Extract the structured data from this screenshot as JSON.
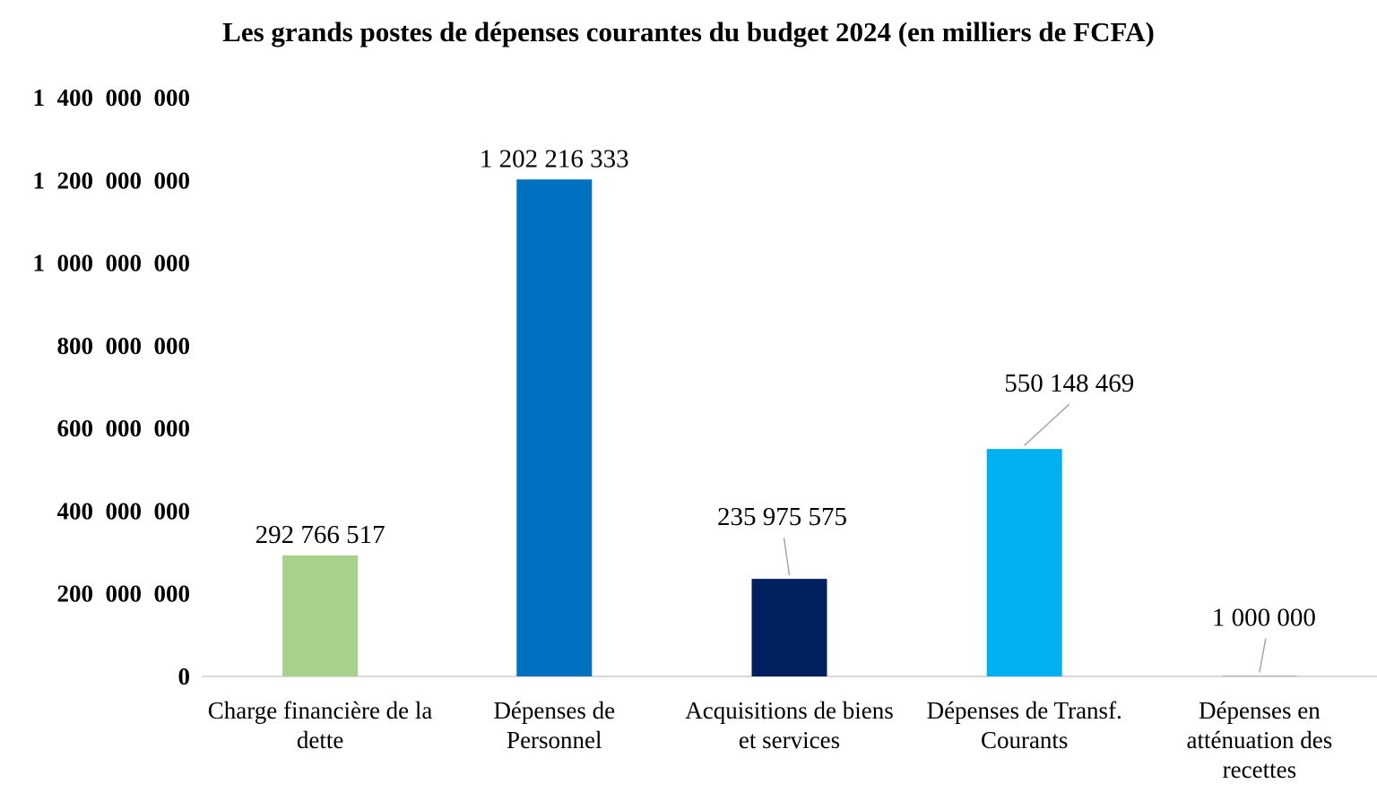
{
  "chart_data": {
    "type": "bar",
    "title": "Les grands postes de dépenses courantes du budget 2024 (en milliers de FCFA)",
    "xlabel": "",
    "ylabel": "",
    "ylim": [
      0,
      1400000000
    ],
    "y_ticks": [
      0,
      200000000,
      400000000,
      600000000,
      800000000,
      1000000000,
      1200000000,
      1400000000
    ],
    "y_tick_labels": [
      "0",
      "200  000  000",
      "400  000  000",
      "600  000  000",
      "800  000  000",
      "1  000  000  000",
      "1  200  000  000",
      "1  400  000  000"
    ],
    "grid": false,
    "legend": "none",
    "categories": [
      "Charge financière de la dette",
      "Dépenses de Personnel",
      "Acquisitions de biens et services",
      "Dépenses de Transf. Courants",
      "Dépenses en atténuation des recettes"
    ],
    "category_lines": [
      [
        "Charge financière de la",
        "dette"
      ],
      [
        "Dépenses de",
        "Personnel"
      ],
      [
        "Acquisitions de biens",
        "et services"
      ],
      [
        "Dépenses de Transf.",
        "Courants"
      ],
      [
        "Dépenses en",
        "atténuation des",
        "recettes"
      ]
    ],
    "values": [
      292766517,
      1202216333,
      235975575,
      550148469,
      1000000
    ],
    "data_labels": [
      "292 766 517",
      "1 202 216 333",
      "235 975 575",
      "550 148 469",
      "1 000 000"
    ],
    "colors": [
      "#a9d18e",
      "#0070c0",
      "#002060",
      "#00b0f0",
      "#7f7f7f"
    ],
    "axis_color": "#d9d9d9",
    "leader_line_color": "#a6a6a6"
  }
}
